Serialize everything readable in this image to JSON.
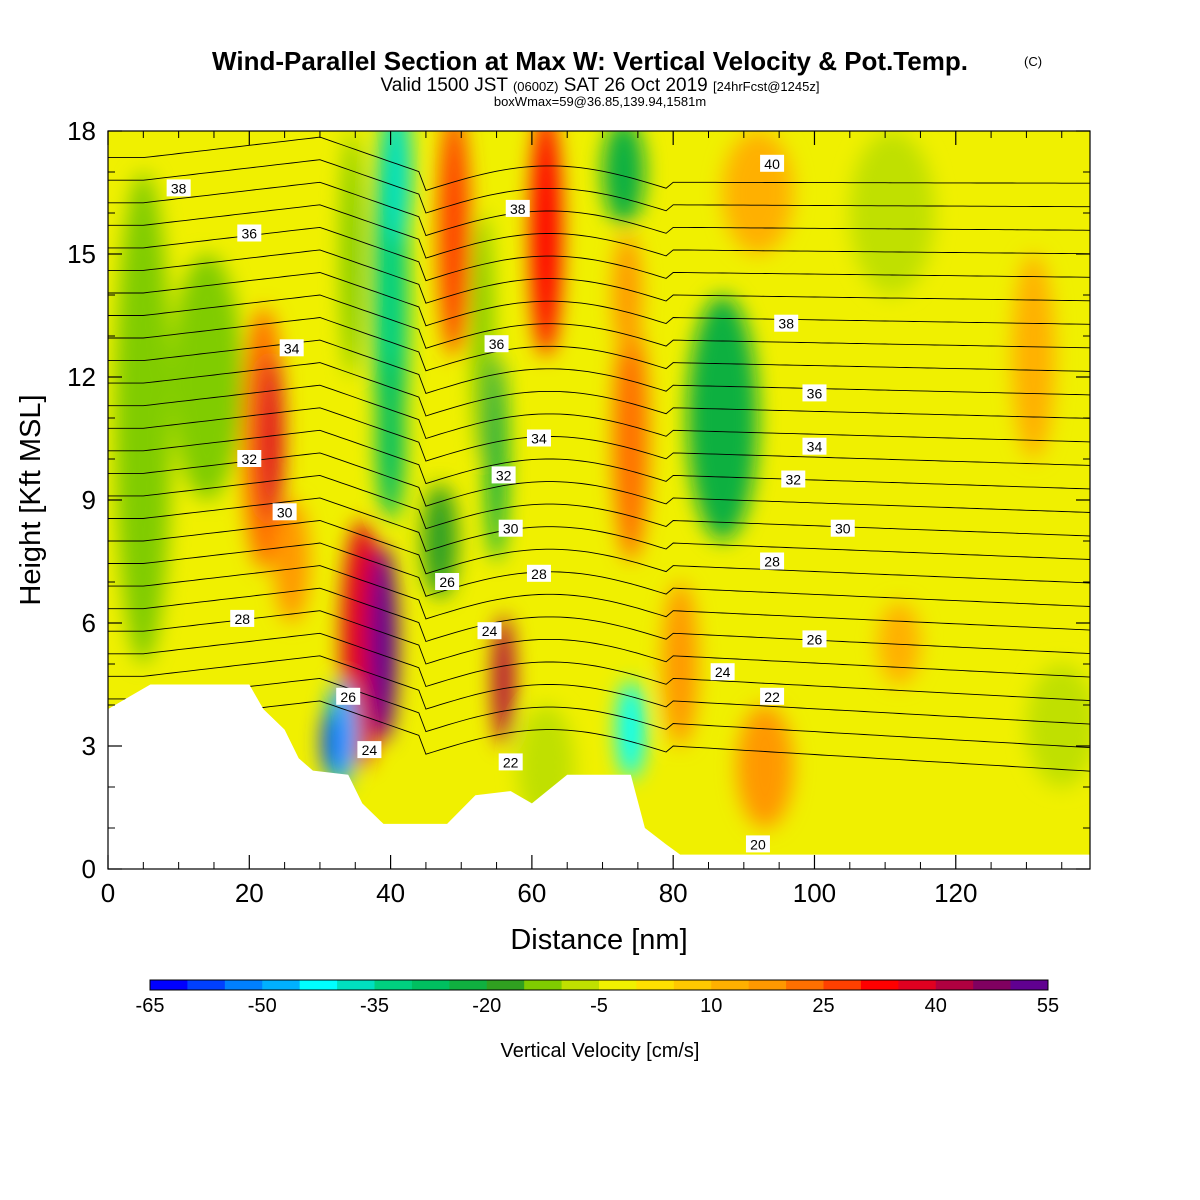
{
  "title": {
    "main": "Wind-Parallel Section at Max W: Vertical Velocity & Pot.Temp.",
    "copyright": "(C)",
    "valid_prefix": "Valid 1500 JST ",
    "valid_z": "(0600Z)",
    "valid_date": " SAT 26 Oct 2019 ",
    "valid_fcst": "[24hrFcst@1245z]",
    "box": "boxWmax=59@36.85,139.94,1581m"
  },
  "chart_data": {
    "type": "heatmap",
    "xlabel": "Distance [nm]",
    "ylabel": "Height [Kft MSL]",
    "xlim": [
      0,
      139
    ],
    "ylim": [
      0,
      18
    ],
    "x_ticks": [
      "0",
      "20",
      "40",
      "60",
      "80",
      "100",
      "120"
    ],
    "y_ticks": [
      "0",
      "3",
      "6",
      "9",
      "12",
      "15",
      "18"
    ],
    "colorbar": {
      "label": "Vertical Velocity [cm/s]",
      "tick_labels": [
        "-65",
        "-50",
        "-35",
        "-20",
        "-5",
        "10",
        "25",
        "40",
        "55"
      ],
      "colors": [
        "#0000ff",
        "#0040ff",
        "#0080ff",
        "#00b0ff",
        "#00ffff",
        "#00e0c0",
        "#00d080",
        "#00c060",
        "#10b040",
        "#30a020",
        "#80cc00",
        "#c0e000",
        "#f0f000",
        "#ffe000",
        "#ffc800",
        "#ffb000",
        "#ff9800",
        "#ff7000",
        "#ff4000",
        "#ff0000",
        "#e00020",
        "#b00040",
        "#800060",
        "#600090"
      ]
    },
    "terrain_profile_kft": [
      [
        0,
        3.9
      ],
      [
        3,
        4.2
      ],
      [
        6,
        4.5
      ],
      [
        20,
        4.5
      ],
      [
        22,
        3.9
      ],
      [
        25,
        3.4
      ],
      [
        27,
        2.7
      ],
      [
        29,
        2.4
      ],
      [
        34,
        2.3
      ],
      [
        36,
        1.6
      ],
      [
        39,
        1.1
      ],
      [
        48,
        1.1
      ],
      [
        52,
        1.8
      ],
      [
        57,
        1.9
      ],
      [
        60,
        1.6
      ],
      [
        65,
        2.3
      ],
      [
        74,
        2.3
      ],
      [
        76,
        1.0
      ],
      [
        79,
        0.6
      ],
      [
        81,
        0.35
      ],
      [
        139,
        0.35
      ]
    ],
    "vertical_velocity_features": [
      {
        "x": 39,
        "z": 5.5,
        "w": 58
      },
      {
        "x": 32.5,
        "z": 3.2,
        "w": -58
      },
      {
        "x": 41,
        "z": 14.5,
        "w": -40
      },
      {
        "x": 56,
        "z": 4.5,
        "w": 45
      },
      {
        "x": 74,
        "z": 3.3,
        "w": -48
      },
      {
        "x": 22,
        "z": 9.5,
        "w": 35
      },
      {
        "x": 63,
        "z": 15.0,
        "w": 35
      },
      {
        "x": 50,
        "z": 15.0,
        "w": 30
      },
      {
        "x": 87,
        "z": 11.0,
        "w": -22
      },
      {
        "x": 55,
        "z": 10.0,
        "w": -20
      },
      {
        "x": 75,
        "z": 10.5,
        "w": 25
      },
      {
        "x": 92,
        "z": 2.8,
        "w": 18
      }
    ],
    "theta_contour_labels": [
      {
        "text": "38",
        "x": 10,
        "z": 16.6
      },
      {
        "text": "36",
        "x": 20,
        "z": 15.5
      },
      {
        "text": "34",
        "x": 26,
        "z": 12.7
      },
      {
        "text": "32",
        "x": 20,
        "z": 10.0
      },
      {
        "text": "30",
        "x": 25,
        "z": 8.7
      },
      {
        "text": "28",
        "x": 19,
        "z": 6.1
      },
      {
        "text": "26",
        "x": 34,
        "z": 4.2
      },
      {
        "text": "24",
        "x": 37,
        "z": 2.9
      },
      {
        "text": "38",
        "x": 58,
        "z": 16.1
      },
      {
        "text": "36",
        "x": 55,
        "z": 12.8
      },
      {
        "text": "34",
        "x": 61,
        "z": 10.5
      },
      {
        "text": "32",
        "x": 56,
        "z": 9.6
      },
      {
        "text": "30",
        "x": 57,
        "z": 8.3
      },
      {
        "text": "28",
        "x": 61,
        "z": 7.2
      },
      {
        "text": "26",
        "x": 48,
        "z": 7.0
      },
      {
        "text": "24",
        "x": 54,
        "z": 5.8
      },
      {
        "text": "22",
        "x": 57,
        "z": 2.6
      },
      {
        "text": "40",
        "x": 94,
        "z": 17.2
      },
      {
        "text": "38",
        "x": 96,
        "z": 13.3
      },
      {
        "text": "36",
        "x": 100,
        "z": 11.6
      },
      {
        "text": "34",
        "x": 100,
        "z": 10.3
      },
      {
        "text": "32",
        "x": 97,
        "z": 9.5
      },
      {
        "text": "30",
        "x": 104,
        "z": 8.3
      },
      {
        "text": "28",
        "x": 94,
        "z": 7.5
      },
      {
        "text": "26",
        "x": 100,
        "z": 5.6
      },
      {
        "text": "24",
        "x": 87,
        "z": 4.8
      },
      {
        "text": "22",
        "x": 94,
        "z": 4.2
      },
      {
        "text": "20",
        "x": 92,
        "z": 0.6
      }
    ]
  }
}
